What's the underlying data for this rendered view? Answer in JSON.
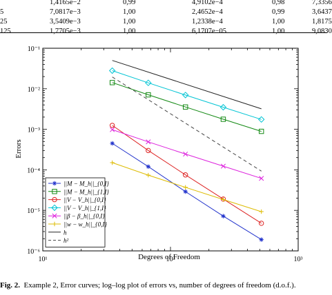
{
  "table": {
    "rows": [
      [
        "",
        "1,4165e−2",
        "0,99",
        "4,9102e−4",
        "0,98",
        "7,3356"
      ],
      [
        "5",
        "7,0817e−3",
        "1,00",
        "2,4652e−4",
        "0,99",
        "3,6437"
      ],
      [
        "25",
        "3,5409e−3",
        "1,00",
        "1,2338e−4",
        "1,00",
        "1,8175"
      ],
      [
        "125",
        "1,7705e−3",
        "1,00",
        "6,1707e−05",
        "1,00",
        "9,0830"
      ]
    ]
  },
  "chart_data": {
    "type": "line",
    "xlabel": "Degrees of Freedom",
    "ylabel": "Errors",
    "xscale": "log",
    "yscale": "log",
    "xlim": [
      10,
      1000
    ],
    "ylim": [
      1e-06,
      0.1
    ],
    "xticks": [
      "10¹",
      "10²",
      "10³"
    ],
    "yticks": [
      "10⁻¹",
      "10⁻²",
      "10⁻³",
      "10⁻⁴",
      "10⁻⁵",
      "10⁻⁶"
    ],
    "legend_position": "bottom-left",
    "grid": false,
    "series": [
      {
        "label": "||M − M_h||_{0,I}",
        "color": "#2233cc",
        "marker": "star",
        "dash": "",
        "x": [
          35,
          67,
          131,
          259,
          515
        ],
        "y": [
          0.00045,
          0.00012,
          2.9e-05,
          7.2e-06,
          1.9e-06
        ]
      },
      {
        "label": "||M − M_h||_{1,I}",
        "color": "#118811",
        "marker": "square",
        "dash": "",
        "x": [
          35,
          67,
          131,
          259,
          515
        ],
        "y": [
          0.0142,
          0.0071,
          0.00355,
          0.00177,
          0.00089
        ]
      },
      {
        "label": "||V − V_h||_{0,I}",
        "color": "#dd2222",
        "marker": "circle",
        "dash": "",
        "x": [
          35,
          67,
          131,
          259,
          515
        ],
        "y": [
          0.00125,
          0.0003,
          7.5e-05,
          1.9e-05,
          4.8e-06
        ]
      },
      {
        "label": "||V − V_h||_{1,I}",
        "color": "#00c4d4",
        "marker": "diamond",
        "dash": "",
        "x": [
          35,
          67,
          131,
          259,
          515
        ],
        "y": [
          0.028,
          0.014,
          0.007,
          0.0035,
          0.00175
        ]
      },
      {
        "label": "||β − β_h||_{0,I}",
        "color": "#dd22dd",
        "marker": "x",
        "dash": "",
        "x": [
          35,
          67,
          131,
          259,
          515
        ],
        "y": [
          0.00098,
          0.00049,
          0.000245,
          0.000123,
          6.15e-05
        ]
      },
      {
        "label": "||w − w_h||_{0,I}",
        "color": "#ddbb00",
        "marker": "plus",
        "dash": "",
        "x": [
          35,
          67,
          131,
          259,
          515
        ],
        "y": [
          0.00015,
          7.4e-05,
          3.7e-05,
          1.85e-05,
          9.3e-06
        ]
      },
      {
        "label": "h",
        "color": "#222222",
        "marker": "none",
        "dash": "",
        "x": [
          35,
          515
        ],
        "y": [
          0.05,
          0.0032
        ]
      },
      {
        "label": "h²",
        "color": "#444444",
        "marker": "none",
        "dash": "5,4",
        "x": [
          35,
          515
        ],
        "y": [
          0.0195,
          9.3e-05
        ]
      }
    ]
  },
  "caption": {
    "label": "Fig. 2.",
    "text": "Example 2, Error curves; log–log plot of errors vs, number of degrees of freedom (d.o.f.)."
  }
}
